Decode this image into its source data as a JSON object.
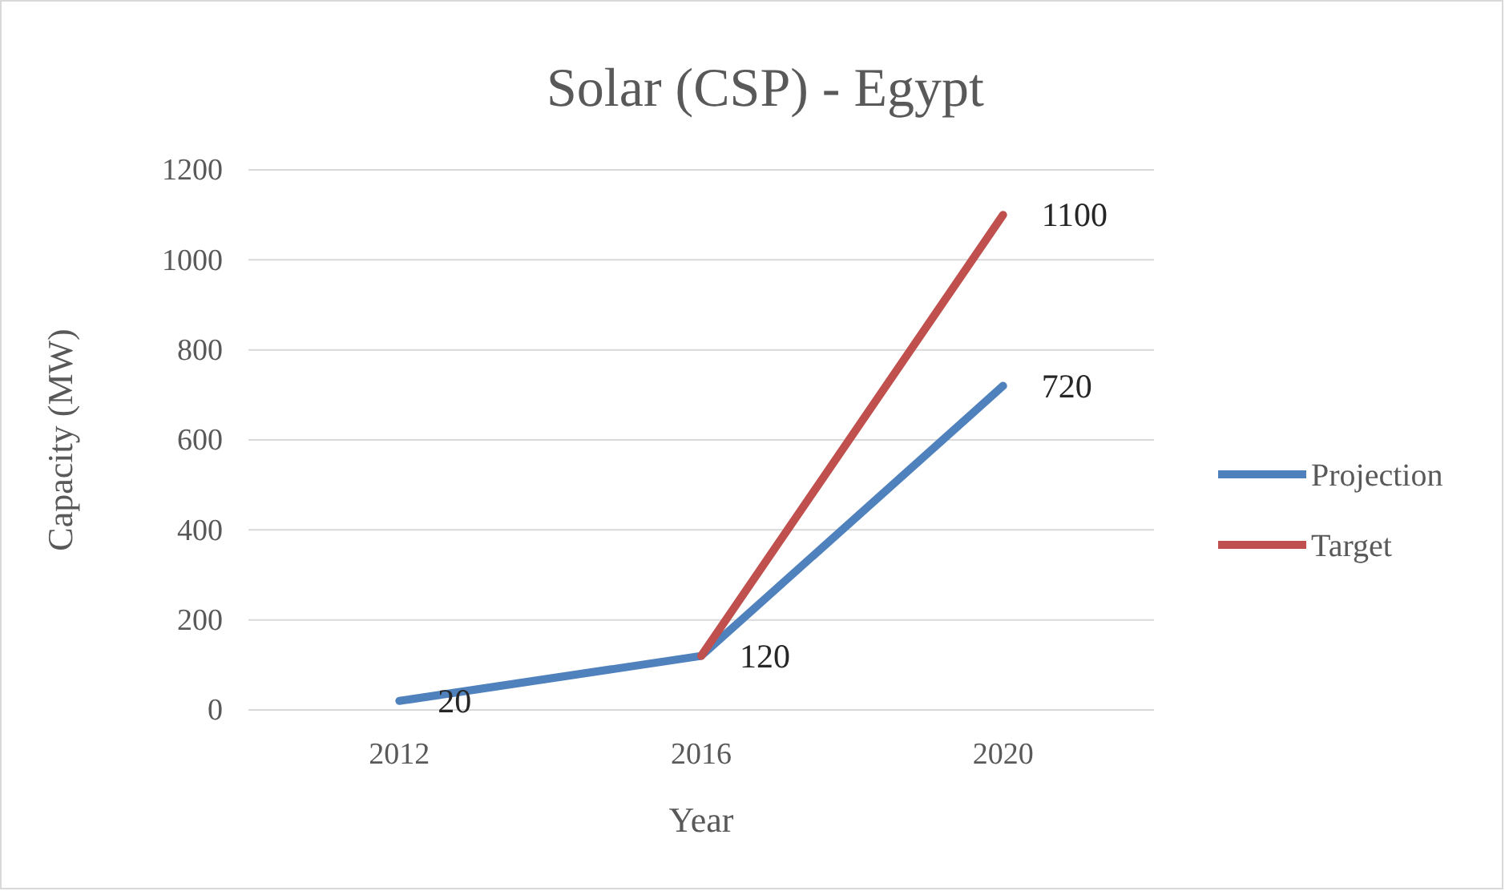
{
  "chart_data": {
    "type": "line",
    "title": "Solar (CSP) - Egypt",
    "xlabel": "Year",
    "ylabel": "Capacity (MW)",
    "categories": [
      "2012",
      "2016",
      "2020"
    ],
    "series": [
      {
        "name": "Projection",
        "color": "#4f81bd",
        "values": [
          20,
          120,
          720
        ],
        "value_labels": [
          "20",
          "120",
          "720"
        ]
      },
      {
        "name": "Target",
        "color": "#c0504d",
        "values": [
          null,
          120,
          1100
        ],
        "value_labels": [
          null,
          null,
          "1100"
        ]
      }
    ],
    "ylim": [
      0,
      1200
    ],
    "yticks": [
      0,
      200,
      400,
      600,
      800,
      1000,
      1200
    ],
    "grid": "y",
    "legend": "right",
    "marker": "none",
    "line_style": "solid"
  }
}
